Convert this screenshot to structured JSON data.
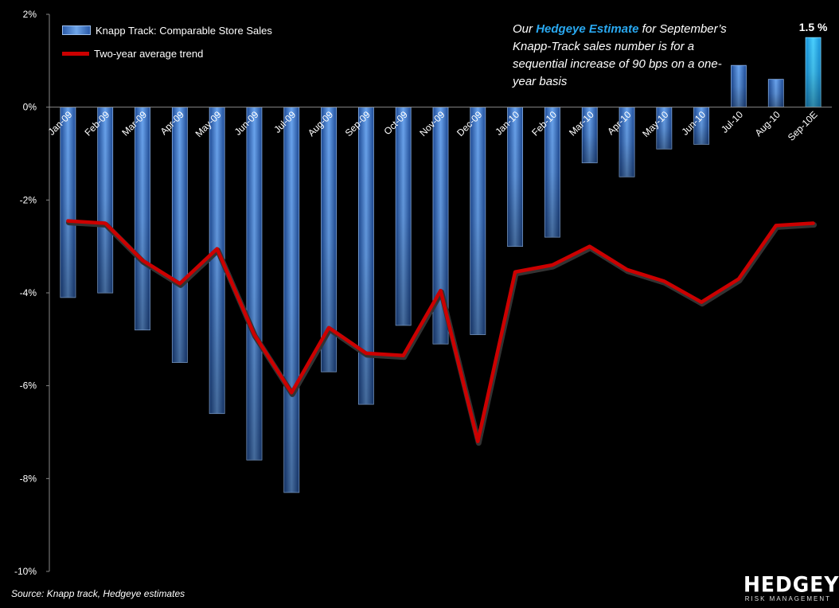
{
  "chart_data": {
    "type": "bar",
    "categories": [
      "Jan-09",
      "Feb-09",
      "Mar-09",
      "Apr-09",
      "May-09",
      "Jun-09",
      "Jul-09",
      "Aug-09",
      "Sep-09",
      "Oct-09",
      "Nov-09",
      "Dec-09",
      "Jan-10",
      "Feb-10",
      "Mar-10",
      "Apr-10",
      "May-10",
      "Jun-10",
      "Jul-10",
      "Aug-10",
      "Sep-10E"
    ],
    "series": [
      {
        "name": "Knapp Track:  Comparable Store Sales",
        "type": "bar",
        "values": [
          -4.1,
          -4.0,
          -4.8,
          -5.5,
          -6.6,
          -7.6,
          -8.3,
          -5.7,
          -6.4,
          -4.7,
          -5.1,
          -4.9,
          -3.0,
          -2.8,
          -1.2,
          -1.5,
          -0.9,
          -0.8,
          0.9,
          0.6,
          1.5
        ]
      },
      {
        "name": "Two-year average trend",
        "type": "line",
        "values": [
          -2.45,
          -2.5,
          -3.3,
          -3.8,
          -3.05,
          -4.9,
          -6.15,
          -4.75,
          -5.3,
          -5.35,
          -3.95,
          -7.2,
          -3.55,
          -3.4,
          -3.0,
          -3.5,
          -3.75,
          -4.2,
          -3.7,
          -2.55,
          -2.5
        ]
      }
    ],
    "ylim": [
      -10,
      2
    ],
    "yticks": [
      2,
      0,
      -2,
      -4,
      -6,
      -8,
      -10
    ],
    "ytick_labels": [
      "2%",
      "0%",
      "-2%",
      "-4%",
      "-6%",
      "-8%",
      "-10%"
    ],
    "data_label": "1.5 %",
    "title": "",
    "xlabel": "",
    "ylabel": "",
    "grid": false,
    "legend_position": "top-left",
    "colors": {
      "bar": "#4f8ee0",
      "bar_highlight": "#29b8f4",
      "line": "#cc0000",
      "axis": "#888888"
    }
  },
  "annotation": {
    "prefix": "Our ",
    "highlight": "Hedgeye Estimate",
    "suffix": " for September’s Knapp-Track sales number is for a sequential increase of 90 bps on a one-year basis"
  },
  "source": "Source: Knapp track, Hedgeye estimates",
  "logo": {
    "main": "HEDGEYE",
    "sub": "RISK MANAGEMENT"
  }
}
